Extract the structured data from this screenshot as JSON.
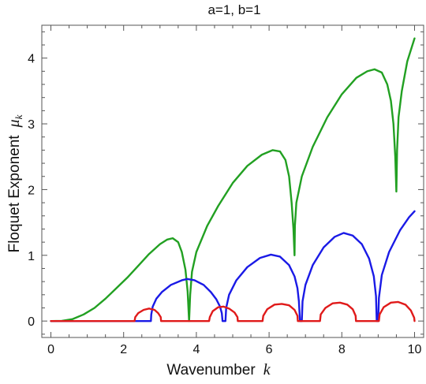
{
  "chart_data": {
    "type": "line",
    "title": "a=1, b=1",
    "xlabel": "Wavenumber",
    "xlabel_symbol": "k",
    "ylabel": "Floquet Exponent",
    "ylabel_symbol": "μ",
    "ylabel_subscript": "k",
    "xlim": [
      -0.25,
      10.25
    ],
    "ylim": [
      -0.25,
      4.5
    ],
    "xticks": [
      0,
      2,
      4,
      6,
      8,
      10
    ],
    "xtick_labels": [
      "0",
      "2",
      "4",
      "6",
      "8",
      "10"
    ],
    "yticks": [
      0,
      1,
      2,
      3,
      4
    ],
    "ytick_labels": [
      "0",
      "1",
      "2",
      "3",
      "4"
    ],
    "grid": false,
    "legend": "none",
    "series": [
      {
        "color": "#22a022",
        "points": [
          [
            0,
            0
          ],
          [
            0.3,
            0.003
          ],
          [
            0.6,
            0.03
          ],
          [
            0.9,
            0.1
          ],
          [
            1.2,
            0.2
          ],
          [
            1.5,
            0.34
          ],
          [
            1.8,
            0.5
          ],
          [
            2.1,
            0.66
          ],
          [
            2.4,
            0.84
          ],
          [
            2.7,
            1.02
          ],
          [
            3.0,
            1.17
          ],
          [
            3.2,
            1.24
          ],
          [
            3.35,
            1.26
          ],
          [
            3.5,
            1.2
          ],
          [
            3.6,
            1.05
          ],
          [
            3.7,
            0.78
          ],
          [
            3.76,
            0.45
          ],
          [
            3.8,
            0
          ],
          [
            3.83,
            0.4
          ],
          [
            3.88,
            0.75
          ],
          [
            4.0,
            1.05
          ],
          [
            4.3,
            1.45
          ],
          [
            4.6,
            1.75
          ],
          [
            5.0,
            2.1
          ],
          [
            5.4,
            2.36
          ],
          [
            5.8,
            2.53
          ],
          [
            6.1,
            2.6
          ],
          [
            6.3,
            2.58
          ],
          [
            6.45,
            2.45
          ],
          [
            6.55,
            2.2
          ],
          [
            6.62,
            1.8
          ],
          [
            6.67,
            1.4
          ],
          [
            6.7,
            1.0
          ],
          [
            6.71,
            1.45
          ],
          [
            6.75,
            1.8
          ],
          [
            6.9,
            2.2
          ],
          [
            7.2,
            2.65
          ],
          [
            7.6,
            3.1
          ],
          [
            8.0,
            3.45
          ],
          [
            8.4,
            3.7
          ],
          [
            8.7,
            3.8
          ],
          [
            8.9,
            3.83
          ],
          [
            9.1,
            3.78
          ],
          [
            9.25,
            3.6
          ],
          [
            9.35,
            3.35
          ],
          [
            9.42,
            3.0
          ],
          [
            9.47,
            2.5
          ],
          [
            9.5,
            1.97
          ],
          [
            9.52,
            2.6
          ],
          [
            9.56,
            3.1
          ],
          [
            9.65,
            3.5
          ],
          [
            9.8,
            3.95
          ],
          [
            10.0,
            4.3
          ]
        ]
      },
      {
        "color": "#1a1ae6",
        "points": [
          [
            0,
            0
          ],
          [
            2.75,
            0
          ],
          [
            2.76,
            0.1
          ],
          [
            2.8,
            0.22
          ],
          [
            2.9,
            0.34
          ],
          [
            3.05,
            0.44
          ],
          [
            3.3,
            0.55
          ],
          [
            3.6,
            0.62
          ],
          [
            3.75,
            0.64
          ],
          [
            3.95,
            0.62
          ],
          [
            4.2,
            0.55
          ],
          [
            4.4,
            0.44
          ],
          [
            4.55,
            0.33
          ],
          [
            4.65,
            0.22
          ],
          [
            4.7,
            0.12
          ],
          [
            4.72,
            0
          ],
          [
            4.8,
            0
          ],
          [
            4.82,
            0.2
          ],
          [
            4.9,
            0.4
          ],
          [
            5.1,
            0.62
          ],
          [
            5.4,
            0.82
          ],
          [
            5.75,
            0.96
          ],
          [
            6.05,
            1.01
          ],
          [
            6.3,
            0.98
          ],
          [
            6.55,
            0.85
          ],
          [
            6.7,
            0.68
          ],
          [
            6.78,
            0.5
          ],
          [
            6.82,
            0.3
          ],
          [
            6.85,
            0
          ],
          [
            6.9,
            0
          ],
          [
            6.92,
            0.3
          ],
          [
            7.0,
            0.55
          ],
          [
            7.2,
            0.85
          ],
          [
            7.5,
            1.12
          ],
          [
            7.8,
            1.28
          ],
          [
            8.05,
            1.34
          ],
          [
            8.3,
            1.3
          ],
          [
            8.55,
            1.17
          ],
          [
            8.75,
            0.95
          ],
          [
            8.88,
            0.68
          ],
          [
            8.94,
            0.38
          ],
          [
            8.96,
            0
          ],
          [
            9.0,
            0
          ],
          [
            9.02,
            0.35
          ],
          [
            9.1,
            0.7
          ],
          [
            9.3,
            1.05
          ],
          [
            9.6,
            1.38
          ],
          [
            9.85,
            1.58
          ],
          [
            10.0,
            1.67
          ]
        ]
      },
      {
        "color": "#e01a1a",
        "points": [
          [
            0,
            0
          ],
          [
            2.3,
            0
          ],
          [
            2.32,
            0.06
          ],
          [
            2.4,
            0.12
          ],
          [
            2.55,
            0.17
          ],
          [
            2.7,
            0.19
          ],
          [
            2.85,
            0.17
          ],
          [
            2.95,
            0.12
          ],
          [
            3.02,
            0.06
          ],
          [
            3.03,
            0
          ],
          [
            4.35,
            0
          ],
          [
            4.37,
            0.06
          ],
          [
            4.45,
            0.15
          ],
          [
            4.6,
            0.21
          ],
          [
            4.75,
            0.22
          ],
          [
            4.9,
            0.19
          ],
          [
            5.05,
            0.13
          ],
          [
            5.13,
            0.06
          ],
          [
            5.14,
            0
          ],
          [
            5.82,
            0
          ],
          [
            5.84,
            0.08
          ],
          [
            5.95,
            0.18
          ],
          [
            6.15,
            0.25
          ],
          [
            6.35,
            0.26
          ],
          [
            6.55,
            0.24
          ],
          [
            6.7,
            0.17
          ],
          [
            6.78,
            0.08
          ],
          [
            6.79,
            0
          ],
          [
            7.4,
            0
          ],
          [
            7.42,
            0.1
          ],
          [
            7.55,
            0.2
          ],
          [
            7.75,
            0.27
          ],
          [
            7.95,
            0.28
          ],
          [
            8.15,
            0.25
          ],
          [
            8.3,
            0.18
          ],
          [
            8.38,
            0.08
          ],
          [
            8.39,
            0
          ],
          [
            9.02,
            0
          ],
          [
            9.04,
            0.1
          ],
          [
            9.15,
            0.21
          ],
          [
            9.35,
            0.28
          ],
          [
            9.55,
            0.29
          ],
          [
            9.75,
            0.25
          ],
          [
            9.9,
            0.16
          ],
          [
            9.99,
            0.05
          ],
          [
            10.0,
            0
          ]
        ]
      }
    ]
  }
}
